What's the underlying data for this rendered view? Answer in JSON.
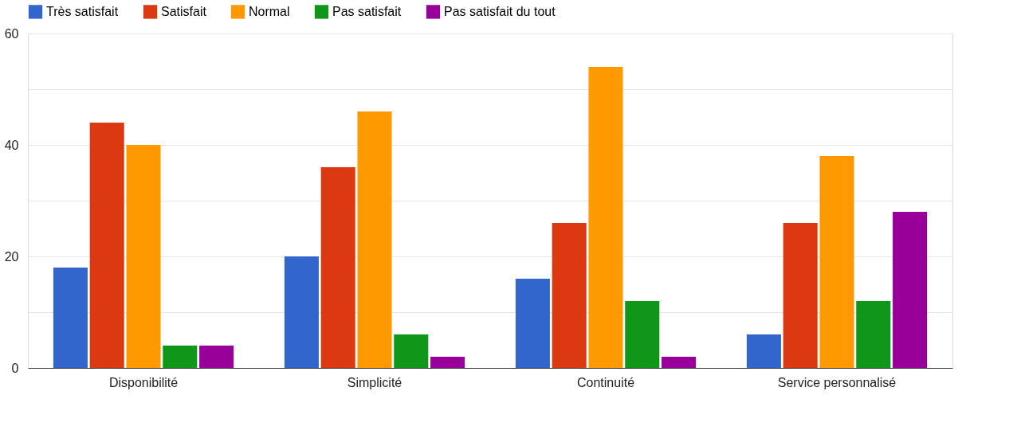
{
  "chart_data": {
    "type": "bar",
    "categories": [
      "Disponibilité",
      "Simplicité",
      "Continuité",
      "Service personnalisé"
    ],
    "series": [
      {
        "name": "Très satisfait",
        "color": "#3366cc",
        "values": [
          18,
          20,
          16,
          6
        ]
      },
      {
        "name": "Satisfait",
        "color": "#dc3912",
        "values": [
          44,
          36,
          26,
          26
        ]
      },
      {
        "name": "Normal",
        "color": "#ff9900",
        "values": [
          40,
          46,
          54,
          38
        ]
      },
      {
        "name": "Pas satisfait",
        "color": "#109618",
        "values": [
          4,
          6,
          12,
          12
        ]
      },
      {
        "name": "Pas satisfait du tout",
        "color": "#990099",
        "values": [
          4,
          2,
          2,
          28
        ]
      }
    ],
    "ylim": [
      0,
      60
    ],
    "yticks": [
      0,
      {
        "value": 10,
        "label": null
      },
      20,
      {
        "value": 30,
        "label": null
      },
      40,
      {
        "value": 50,
        "label": null
      },
      60
    ],
    "grid": "y",
    "legend": "top"
  }
}
